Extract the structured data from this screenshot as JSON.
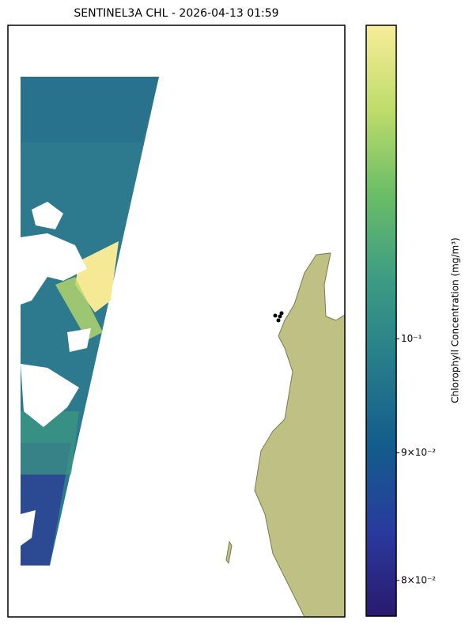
{
  "title": "SENTINEL3A CHL - 2026-04-13 01:59",
  "colorbar": {
    "label": "Chlorophyll Concentration (mg/m³)",
    "scale": "log",
    "lim": [
      0.0774,
      0.1336
    ],
    "ticks": [
      {
        "value": 0.08,
        "label": "8×10⁻²"
      },
      {
        "value": 0.09,
        "label": "9×10⁻²"
      },
      {
        "value": 0.1,
        "label": "10⁻¹"
      }
    ],
    "colors": [
      "#2a1a6e",
      "#2a3a9e",
      "#135c8c",
      "#277c8b",
      "#3d9c83",
      "#6bbd67",
      "#bedc6a",
      "#f8ec9a"
    ]
  }
}
